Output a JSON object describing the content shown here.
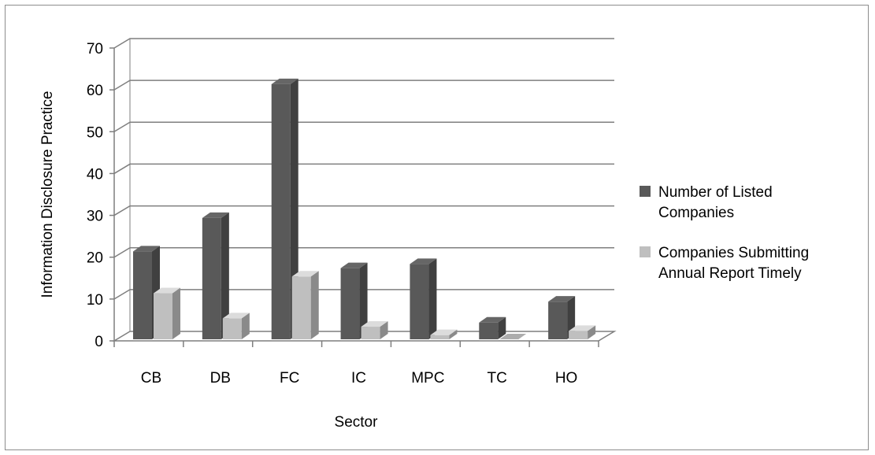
{
  "chart_data": {
    "type": "bar",
    "style": "3d-clustered-column",
    "title": "",
    "xlabel": "Sector",
    "ylabel": "Information Disclosure Practice",
    "ylim": [
      0,
      70
    ],
    "yticks": [
      0,
      10,
      20,
      30,
      40,
      50,
      60,
      70
    ],
    "grid": true,
    "legend_position": "right",
    "categories": [
      "CB",
      "DB",
      "FC",
      "IC",
      "MPC",
      "TC",
      "HO"
    ],
    "series": [
      {
        "name": "Number of Listed Companies",
        "legend_lines": [
          "Number of Listed",
          "Companies"
        ],
        "color": "#595959",
        "values": [
          21,
          29,
          61,
          17,
          18,
          4,
          9
        ]
      },
      {
        "name": "Companies Submitting Annual Report Timely",
        "legend_lines": [
          "Companies Submitting",
          "Annual Report Timely"
        ],
        "color": "#bfbfbf",
        "values": [
          11,
          5,
          15,
          3,
          1,
          0,
          2
        ]
      }
    ]
  }
}
